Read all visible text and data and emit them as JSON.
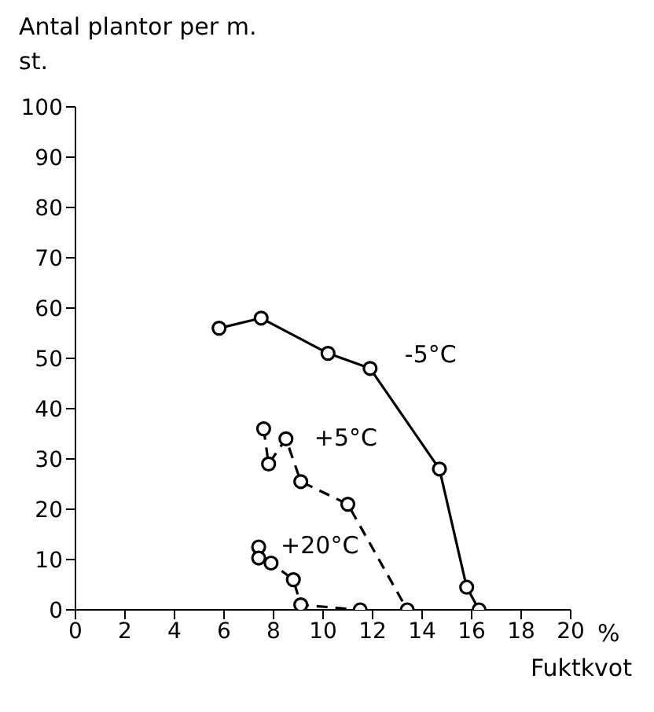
{
  "chart_data": {
    "type": "line",
    "ylabel": "Antal plantor per m.",
    "xlabel": "Fuktkvot",
    "annotations": [
      "st.",
      "%"
    ],
    "xlim": [
      0,
      20
    ],
    "xticks": [
      0,
      2,
      4,
      6,
      8,
      10,
      12,
      14,
      16,
      18,
      20
    ],
    "ylim": [
      0,
      100
    ],
    "yticks": [
      0,
      10,
      20,
      30,
      40,
      50,
      60,
      70,
      80,
      90,
      100
    ],
    "marker": "circle",
    "series": [
      {
        "name": "-5°C",
        "color": "#000000",
        "line_style": "solid",
        "x": [
          5.8,
          7.5,
          10.2,
          11.9,
          14.7,
          15.8,
          16.3
        ],
        "values": [
          56,
          58,
          51,
          48,
          28,
          4.5,
          0
        ]
      },
      {
        "name": "+5°C",
        "color": "#000000",
        "line_style": "dashed",
        "x": [
          7.6,
          7.8,
          8.5,
          9.1,
          11.0,
          13.4
        ],
        "values": [
          36,
          29,
          34,
          25.5,
          21,
          0
        ]
      },
      {
        "name": "+20°C",
        "color": "#000000",
        "line_style": "dashed",
        "x": [
          7.4,
          7.4,
          7.9,
          8.8,
          9.1,
          11.5
        ],
        "values": [
          12.5,
          10.3,
          9.3,
          6,
          1,
          0
        ]
      }
    ]
  }
}
